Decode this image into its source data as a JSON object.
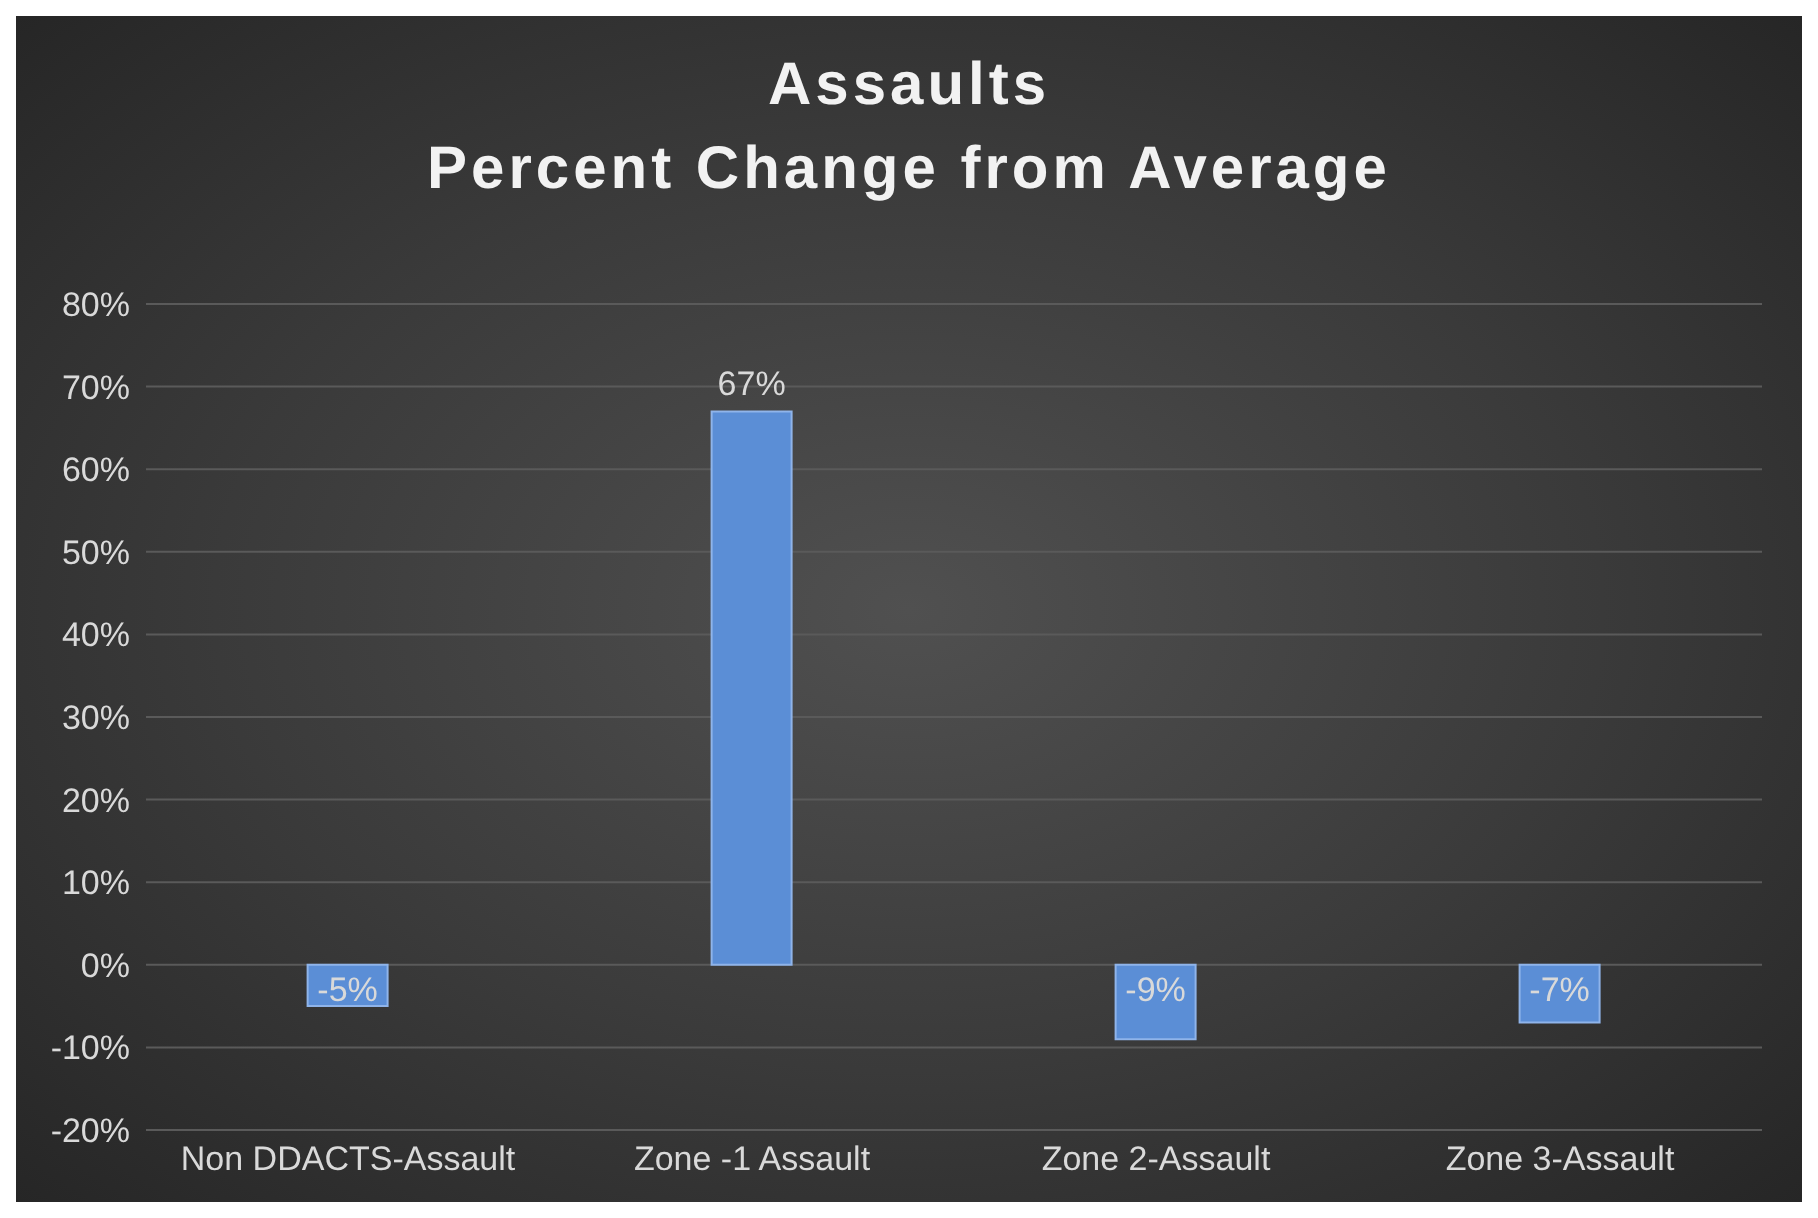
{
  "chart_data": {
    "type": "bar",
    "title": "Assaults\nPercent Change from Average",
    "categories": [
      "Non DDACTS-Assault",
      "Zone -1 Assault",
      "Zone 2-Assault",
      "Zone 3-Assault"
    ],
    "values": [
      -5,
      67,
      -9,
      -7
    ],
    "value_labels": [
      "-5%",
      "67%",
      "-9%",
      "-7%"
    ],
    "color": "#5b8ed6",
    "ylim": [
      -20,
      80
    ],
    "yticks": [
      {
        "value": -20,
        "label": "-20%"
      },
      {
        "value": -10,
        "label": "-10%"
      },
      {
        "value": 0,
        "label": "0%"
      },
      {
        "value": 10,
        "label": "10%"
      },
      {
        "value": 20,
        "label": "20%"
      },
      {
        "value": 30,
        "label": "30%"
      },
      {
        "value": 40,
        "label": "40%"
      },
      {
        "value": 50,
        "label": "50%"
      },
      {
        "value": 60,
        "label": "60%"
      },
      {
        "value": 70,
        "label": "70%"
      },
      {
        "value": 80,
        "label": "80%"
      }
    ],
    "grid": "y"
  }
}
